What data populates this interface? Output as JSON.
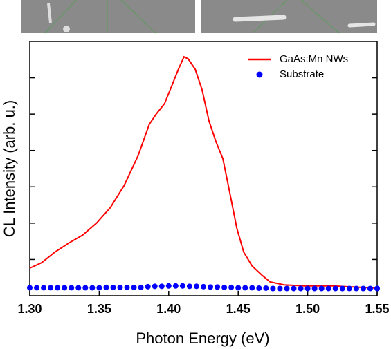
{
  "chart_data": {
    "type": "line",
    "xlabel": "Photon Energy (eV)",
    "ylabel": "CL Intensity (arb. u.)",
    "xlim": [
      1.3,
      1.55
    ],
    "xticks": [
      {
        "value": 1.3,
        "label": "1.30"
      },
      1.35,
      {
        "value": 1.4,
        "label": "1.40"
      },
      1.45,
      {
        "value": 1.5,
        "label": "1.50"
      },
      1.55
    ],
    "ylim": [
      0,
      7
    ],
    "yticks": [
      1,
      2,
      3,
      4,
      5,
      6
    ],
    "legend": "upper right",
    "series": [
      {
        "name": "GaAs:Mn NWs",
        "color": "#ff0000",
        "style": "line",
        "x": [
          1.3,
          1.3085,
          1.318,
          1.328,
          1.338,
          1.348,
          1.358,
          1.368,
          1.378,
          1.386,
          1.391,
          1.397,
          1.402,
          1.407,
          1.411,
          1.414,
          1.419,
          1.424,
          1.429,
          1.434,
          1.439,
          1.444,
          1.449,
          1.454,
          1.46,
          1.467,
          1.473,
          1.483,
          1.498,
          1.518,
          1.55
        ],
        "values": [
          0.76,
          0.91,
          1.2,
          1.45,
          1.67,
          2.0,
          2.43,
          3.04,
          3.86,
          4.72,
          5.0,
          5.29,
          5.76,
          6.24,
          6.58,
          6.52,
          6.24,
          5.67,
          4.81,
          4.24,
          3.77,
          2.82,
          1.86,
          1.2,
          0.82,
          0.57,
          0.38,
          0.3,
          0.27,
          0.27,
          0.21
        ]
      },
      {
        "name": "Substrate",
        "color": "#0000ff",
        "style": "scatter",
        "x": [
          1.3,
          1.305,
          1.31,
          1.315,
          1.32,
          1.325,
          1.33,
          1.335,
          1.34,
          1.345,
          1.35,
          1.355,
          1.36,
          1.365,
          1.37,
          1.375,
          1.38,
          1.385,
          1.39,
          1.395,
          1.4,
          1.405,
          1.41,
          1.415,
          1.42,
          1.425,
          1.43,
          1.435,
          1.44,
          1.445,
          1.45,
          1.455,
          1.46,
          1.465,
          1.47,
          1.475,
          1.48,
          1.485,
          1.49,
          1.495,
          1.5,
          1.505,
          1.51,
          1.515,
          1.52,
          1.525,
          1.53,
          1.535,
          1.54,
          1.545,
          1.55
        ],
        "values": [
          0.22,
          0.22,
          0.22,
          0.22,
          0.22,
          0.22,
          0.22,
          0.22,
          0.22,
          0.22,
          0.22,
          0.23,
          0.23,
          0.23,
          0.23,
          0.23,
          0.23,
          0.25,
          0.26,
          0.26,
          0.27,
          0.27,
          0.27,
          0.26,
          0.26,
          0.25,
          0.24,
          0.24,
          0.23,
          0.23,
          0.22,
          0.22,
          0.22,
          0.21,
          0.21,
          0.2,
          0.2,
          0.2,
          0.2,
          0.2,
          0.2,
          0.2,
          0.2,
          0.2,
          0.2,
          0.2,
          0.2,
          0.2,
          0.2,
          0.2,
          0.2
        ]
      }
    ]
  }
}
